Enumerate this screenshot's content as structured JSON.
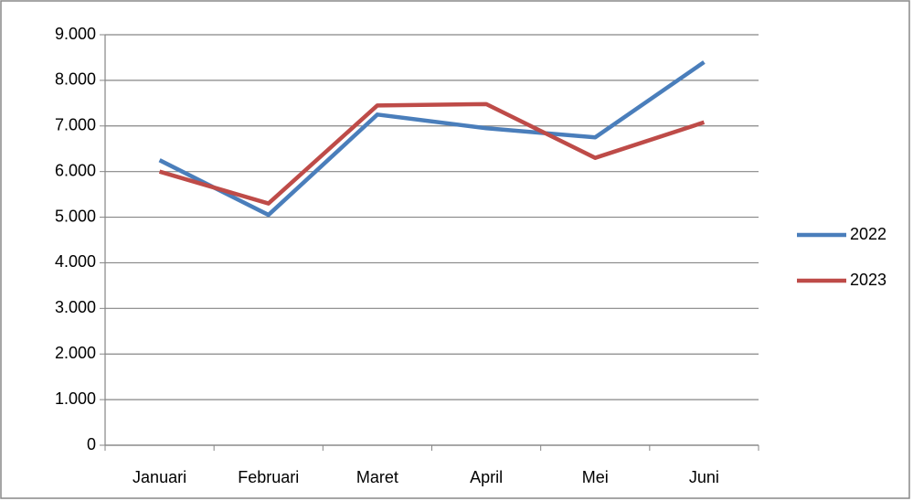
{
  "chart_data": {
    "type": "line",
    "categories": [
      "Januari",
      "Februari",
      "Maret",
      "April",
      "Mei",
      "Juni"
    ],
    "series": [
      {
        "name": "2022",
        "color": "#4a7ebb",
        "values": [
          6250,
          5050,
          7250,
          6950,
          6750,
          8400
        ]
      },
      {
        "name": "2023",
        "color": "#be4b48",
        "values": [
          6000,
          5300,
          7450,
          7480,
          6300,
          7080
        ]
      }
    ],
    "ylim": [
      0,
      9000
    ],
    "yticks": [
      0,
      {
        "value": 1000,
        "label": "1.000"
      },
      {
        "value": 2000,
        "label": "2.000"
      },
      {
        "value": 3000,
        "label": "3.000"
      },
      {
        "value": 4000,
        "label": "4.000"
      },
      {
        "value": 5000,
        "label": "5.000"
      },
      {
        "value": 6000,
        "label": "6.000"
      },
      {
        "value": 7000,
        "label": "7.000"
      },
      {
        "value": 8000,
        "label": "8.000"
      },
      {
        "value": 9000,
        "label": "9.000"
      }
    ],
    "grid": true,
    "legend": "right"
  }
}
